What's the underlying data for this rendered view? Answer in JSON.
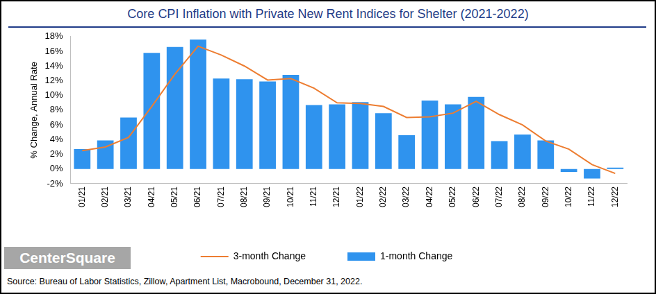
{
  "chart_data": {
    "type": "bar",
    "title": "Core CPI Inflation with Private New Rent Indices for Shelter (2021-2022)",
    "y_label": "% Change, Annual Rate",
    "source": "Source: Bureau of Labor Statistics, Zillow, Apartment List, Macrobound, December 31, 2022.",
    "logo": "CenterSquare",
    "categories": [
      "01/21",
      "02/21",
      "03/21",
      "04/21",
      "05/21",
      "06/21",
      "07/21",
      "08/21",
      "09/21",
      "10/21",
      "11/21",
      "12/21",
      "01/22",
      "02/22",
      "03/22",
      "04/22",
      "05/22",
      "06/22",
      "07/22",
      "08/22",
      "09/22",
      "10/22",
      "11/22",
      "12/22"
    ],
    "series": [
      {
        "name": "1-month Change",
        "type": "bar",
        "color": "#2f93ee",
        "values": [
          2.7,
          3.9,
          7.0,
          15.8,
          16.6,
          17.6,
          12.3,
          12.2,
          11.9,
          12.8,
          8.7,
          8.8,
          9.1,
          7.6,
          4.6,
          9.3,
          8.8,
          9.8,
          3.8,
          4.7,
          3.9,
          -0.4,
          -1.3,
          0.2
        ]
      },
      {
        "name": "3-month Change",
        "type": "line",
        "color": "#ed7d31",
        "marker": "none",
        "values": [
          2.5,
          3.0,
          4.3,
          8.5,
          12.9,
          16.7,
          15.5,
          14.0,
          12.1,
          12.3,
          11.0,
          9.0,
          8.9,
          8.5,
          7.0,
          7.1,
          7.6,
          9.2,
          7.4,
          6.0,
          3.8,
          2.7,
          0.6,
          -0.6
        ]
      }
    ],
    "ylim": [
      -2,
      18
    ],
    "yticks": [
      {
        "value": -2,
        "label": "-2%"
      },
      {
        "value": 0,
        "label": "0%"
      },
      {
        "value": 2,
        "label": "2%"
      },
      {
        "value": 4,
        "label": "4%"
      },
      {
        "value": 6,
        "label": "6%"
      },
      {
        "value": 8,
        "label": "8%"
      },
      {
        "value": 10,
        "label": "10%"
      },
      {
        "value": 12,
        "label": "12%"
      },
      {
        "value": 14,
        "label": "14%"
      },
      {
        "value": 16,
        "label": "16%"
      },
      {
        "value": 18,
        "label": "18%"
      }
    ],
    "grid": false,
    "legend": "bottom"
  }
}
